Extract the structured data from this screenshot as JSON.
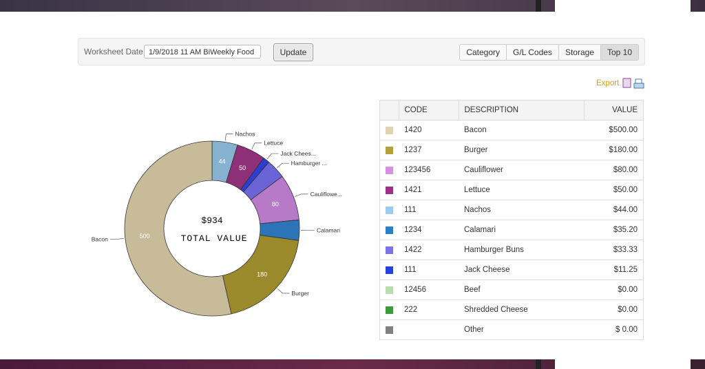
{
  "toolbar": {
    "date_label": "Worksheet Date:",
    "date_value": "1/9/2018 11 AM BiWeekly Food",
    "update": "Update",
    "tabs": [
      "Category",
      "G/L Codes",
      "Storage",
      "Top 10"
    ],
    "active_tab": 3
  },
  "export": "Export",
  "chart": {
    "type": "donut",
    "center_value": "$934",
    "center_label": "TOTAL VALUE",
    "slices": [
      {
        "name": "Nachos",
        "value": 44,
        "color": "#86b2cf"
      },
      {
        "name": "Lettuce",
        "value": 50,
        "color": "#8e3078"
      },
      {
        "name": "Jack Chees...",
        "value": 11.25,
        "color": "#2b3fd0"
      },
      {
        "name": "Hamburger ...",
        "value": 33.33,
        "color": "#6a64d6"
      },
      {
        "name": "Cauliflowe...",
        "value": 80,
        "color": "#b77ac9"
      },
      {
        "name": "Calamari",
        "value": 35.2,
        "color": "#2c74b8"
      },
      {
        "name": "Burger",
        "value": 180,
        "color": "#9a8a2c"
      },
      {
        "name": "Bacon",
        "value": 500,
        "color": "#c7bb99"
      }
    ]
  },
  "table": {
    "columns": [
      "CODE",
      "DESCRIPTION",
      "VALUE"
    ],
    "rows": [
      {
        "color": "#e0d4b0",
        "cells": [
          "1420",
          "Bacon",
          "$500.00"
        ]
      },
      {
        "color": "#b4a13a",
        "cells": [
          "1237",
          "Burger",
          "$180.00"
        ]
      },
      {
        "color": "#d690e0",
        "cells": [
          "123456",
          "Cauliflower",
          "$80.00"
        ]
      },
      {
        "color": "#9a3288",
        "cells": [
          "1421",
          "Lettuce",
          "$50.00"
        ]
      },
      {
        "color": "#9ccbef",
        "cells": [
          "111",
          "Nachos",
          "$44.00"
        ]
      },
      {
        "color": "#2a7fc8",
        "cells": [
          "1234",
          "Calamari",
          "$35.20"
        ]
      },
      {
        "color": "#7c74e6",
        "cells": [
          "1422",
          "Hamburger Buns",
          "$33.33"
        ]
      },
      {
        "color": "#2740e0",
        "cells": [
          "111",
          "Jack Cheese",
          "$11.25"
        ]
      },
      {
        "color": "#b8dcb0",
        "cells": [
          "12456",
          "Beef",
          "$0.00"
        ]
      },
      {
        "color": "#3c9a3c",
        "cells": [
          "222",
          "Shredded Cheese",
          "$0.00"
        ]
      },
      {
        "color": "#808080",
        "cells": [
          null,
          "Other",
          "$ 0.00"
        ]
      }
    ]
  }
}
